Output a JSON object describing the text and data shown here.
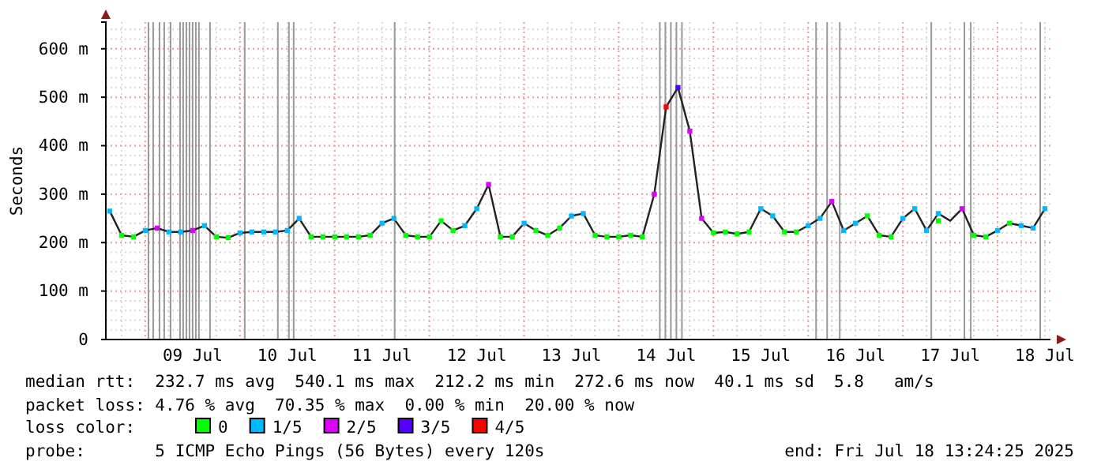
{
  "chart_data": {
    "type": "line",
    "ylabel": "Seconds",
    "legend_title": "loss color:",
    "legend": "bottom",
    "grid": true,
    "xlim": [
      "2025-07-08T14:00",
      "2025-07-18T13:24"
    ],
    "xticks": [
      {
        "value": "2025-07-09T12:00",
        "label": "09 Jul"
      },
      {
        "value": "2025-07-10T12:00",
        "label": "10 Jul"
      },
      {
        "value": "2025-07-11T12:00",
        "label": "11 Jul"
      },
      {
        "value": "2025-07-12T12:00",
        "label": "12 Jul"
      },
      {
        "value": "2025-07-13T12:00",
        "label": "13 Jul"
      },
      {
        "value": "2025-07-14T12:00",
        "label": "14 Jul"
      },
      {
        "value": "2025-07-15T12:00",
        "label": "15 Jul"
      },
      {
        "value": "2025-07-16T12:00",
        "label": "16 Jul"
      },
      {
        "value": "2025-07-17T12:00",
        "label": "17 Jul"
      },
      {
        "value": "2025-07-18T12:00",
        "label": "18 Jul"
      }
    ],
    "ylim": [
      0,
      655
    ],
    "yticks": [
      0,
      {
        "value": 100,
        "label": "100 m"
      },
      {
        "value": 200,
        "label": "200 m"
      },
      {
        "value": 300,
        "label": "300 m"
      },
      {
        "value": 400,
        "label": "400 m"
      },
      {
        "value": 500,
        "label": "500 m"
      },
      {
        "value": 600,
        "label": "600 m"
      }
    ],
    "x": [
      "2025-07-08T15:00",
      "2025-07-08T18:00",
      "2025-07-08T21:00",
      "2025-07-09T00:00",
      "2025-07-09T03:00",
      "2025-07-09T06:00",
      "2025-07-09T09:00",
      "2025-07-09T12:00",
      "2025-07-09T15:00",
      "2025-07-09T18:00",
      "2025-07-09T21:00",
      "2025-07-10T00:00",
      "2025-07-10T03:00",
      "2025-07-10T06:00",
      "2025-07-10T09:00",
      "2025-07-10T12:00",
      "2025-07-10T15:00",
      "2025-07-10T18:00",
      "2025-07-10T21:00",
      "2025-07-11T00:00",
      "2025-07-11T03:00",
      "2025-07-11T06:00",
      "2025-07-11T09:00",
      "2025-07-11T12:00",
      "2025-07-11T15:00",
      "2025-07-11T18:00",
      "2025-07-11T21:00",
      "2025-07-12T00:00",
      "2025-07-12T03:00",
      "2025-07-12T06:00",
      "2025-07-12T09:00",
      "2025-07-12T12:00",
      "2025-07-12T15:00",
      "2025-07-12T18:00",
      "2025-07-12T21:00",
      "2025-07-13T00:00",
      "2025-07-13T03:00",
      "2025-07-13T06:00",
      "2025-07-13T09:00",
      "2025-07-13T12:00",
      "2025-07-13T15:00",
      "2025-07-13T18:00",
      "2025-07-13T21:00",
      "2025-07-14T00:00",
      "2025-07-14T03:00",
      "2025-07-14T06:00",
      "2025-07-14T09:00",
      "2025-07-14T12:00",
      "2025-07-14T15:00",
      "2025-07-14T18:00",
      "2025-07-14T21:00",
      "2025-07-15T00:00",
      "2025-07-15T03:00",
      "2025-07-15T06:00",
      "2025-07-15T09:00",
      "2025-07-15T12:00",
      "2025-07-15T15:00",
      "2025-07-15T18:00",
      "2025-07-15T21:00",
      "2025-07-16T00:00",
      "2025-07-16T03:00",
      "2025-07-16T06:00",
      "2025-07-16T09:00",
      "2025-07-16T12:00",
      "2025-07-16T15:00",
      "2025-07-16T18:00",
      "2025-07-16T21:00",
      "2025-07-17T00:00",
      "2025-07-17T03:00",
      "2025-07-17T06:00",
      "2025-07-17T09:00",
      "2025-07-17T12:00",
      "2025-07-17T15:00",
      "2025-07-17T18:00",
      "2025-07-17T21:00",
      "2025-07-18T00:00",
      "2025-07-18T03:00",
      "2025-07-18T06:00",
      "2025-07-18T09:00",
      "2025-07-18T12:00"
    ],
    "series": [
      {
        "color": "#222222",
        "values": [
          265,
          215,
          212,
          225,
          230,
          222,
          222,
          225,
          235,
          212,
          210,
          220,
          222,
          222,
          222,
          225,
          250,
          212,
          212,
          212,
          212,
          212,
          215,
          240,
          250,
          215,
          212,
          212,
          245,
          225,
          235,
          270,
          320,
          212,
          212,
          240,
          225,
          215,
          230,
          255,
          260,
          215,
          212,
          212,
          215,
          212,
          300,
          480,
          520,
          430,
          250,
          220,
          222,
          218,
          222,
          270,
          255,
          222,
          222,
          235,
          250,
          285,
          225,
          240,
          255,
          215,
          212,
          250,
          270,
          225,
          260,
          245,
          270,
          215,
          212,
          225,
          240,
          235,
          230,
          270
        ]
      },
      {
        "type": "scatter",
        "name": "0",
        "color": "#00ff00",
        "marker": "square",
        "x": [
          "2025-07-08T18:00",
          "2025-07-08T21:00",
          "2025-07-09T18:00",
          "2025-07-09T21:00",
          "2025-07-10T18:00",
          "2025-07-10T21:00",
          "2025-07-11T00:00",
          "2025-07-11T03:00",
          "2025-07-11T06:00",
          "2025-07-11T09:00",
          "2025-07-11T18:00",
          "2025-07-11T21:00",
          "2025-07-12T00:00",
          "2025-07-12T03:00",
          "2025-07-12T06:00",
          "2025-07-12T18:00",
          "2025-07-12T21:00",
          "2025-07-13T03:00",
          "2025-07-13T06:00",
          "2025-07-13T09:00",
          "2025-07-13T18:00",
          "2025-07-13T21:00",
          "2025-07-14T00:00",
          "2025-07-14T03:00",
          "2025-07-14T06:00",
          "2025-07-15T00:00",
          "2025-07-15T03:00",
          "2025-07-15T06:00",
          "2025-07-15T09:00",
          "2025-07-15T18:00",
          "2025-07-15T21:00",
          "2025-07-16T15:00",
          "2025-07-16T18:00",
          "2025-07-16T21:00",
          "2025-07-17T09:00",
          "2025-07-17T18:00",
          "2025-07-17T21:00",
          "2025-07-18T03:00"
        ],
        "values": [
          215,
          212,
          212,
          210,
          212,
          212,
          212,
          212,
          212,
          215,
          215,
          212,
          212,
          245,
          225,
          212,
          212,
          225,
          215,
          230,
          215,
          212,
          212,
          215,
          212,
          220,
          222,
          218,
          222,
          222,
          222,
          255,
          215,
          212,
          245,
          215,
          212,
          240
        ]
      },
      {
        "type": "scatter",
        "name": "1/5",
        "color": "#00b8ff",
        "marker": "square",
        "x": [
          "2025-07-08T15:00",
          "2025-07-09T00:00",
          "2025-07-09T06:00",
          "2025-07-09T09:00",
          "2025-07-09T15:00",
          "2025-07-10T00:00",
          "2025-07-10T03:00",
          "2025-07-10T06:00",
          "2025-07-10T09:00",
          "2025-07-10T12:00",
          "2025-07-10T15:00",
          "2025-07-11T12:00",
          "2025-07-11T15:00",
          "2025-07-12T09:00",
          "2025-07-12T12:00",
          "2025-07-13T00:00",
          "2025-07-13T12:00",
          "2025-07-13T15:00",
          "2025-07-15T12:00",
          "2025-07-15T15:00",
          "2025-07-16T00:00",
          "2025-07-16T03:00",
          "2025-07-16T09:00",
          "2025-07-16T12:00",
          "2025-07-17T00:00",
          "2025-07-17T03:00",
          "2025-07-17T06:00",
          "2025-07-17T09:00",
          "2025-07-18T00:00",
          "2025-07-18T06:00",
          "2025-07-18T09:00",
          "2025-07-18T12:00"
        ],
        "values": [
          265,
          225,
          222,
          222,
          235,
          220,
          222,
          222,
          222,
          225,
          250,
          240,
          250,
          235,
          270,
          240,
          255,
          260,
          270,
          255,
          235,
          250,
          225,
          240,
          250,
          270,
          225,
          260,
          225,
          235,
          230,
          270
        ]
      },
      {
        "type": "scatter",
        "name": "2/5",
        "color": "#dd00ff",
        "marker": "square",
        "x": [
          "2025-07-09T03:00",
          "2025-07-09T12:00",
          "2025-07-12T15:00",
          "2025-07-14T09:00",
          "2025-07-14T18:00",
          "2025-07-14T21:00",
          "2025-07-16T06:00",
          "2025-07-17T15:00"
        ],
        "values": [
          230,
          225,
          320,
          300,
          430,
          250,
          285,
          270
        ]
      },
      {
        "type": "scatter",
        "name": "3/5",
        "color": "#5500ff",
        "marker": "square",
        "x": [
          "2025-07-14T15:00"
        ],
        "values": [
          520
        ]
      },
      {
        "type": "scatter",
        "name": "4/5",
        "color": "#ff0000",
        "marker": "square",
        "x": [
          "2025-07-14T12:00"
        ],
        "values": [
          480
        ]
      }
    ],
    "ref_lines": [
      {
        "axis": "x",
        "value": "2025-07-09T00:48",
        "color": "#999999"
      },
      {
        "axis": "x",
        "value": "2025-07-09T02:00",
        "color": "#999999"
      },
      {
        "axis": "x",
        "value": "2025-07-09T03:36",
        "color": "#999999"
      },
      {
        "axis": "x",
        "value": "2025-07-09T04:48",
        "color": "#999999"
      },
      {
        "axis": "x",
        "value": "2025-07-09T06:24",
        "color": "#999999"
      },
      {
        "axis": "x",
        "value": "2025-07-09T08:48",
        "color": "#999999"
      },
      {
        "axis": "x",
        "value": "2025-07-09T09:36",
        "color": "#999999"
      },
      {
        "axis": "x",
        "value": "2025-07-09T10:24",
        "color": "#999999"
      },
      {
        "axis": "x",
        "value": "2025-07-09T11:12",
        "color": "#999999"
      },
      {
        "axis": "x",
        "value": "2025-07-09T12:00",
        "color": "#999999"
      },
      {
        "axis": "x",
        "value": "2025-07-09T12:48",
        "color": "#999999"
      },
      {
        "axis": "x",
        "value": "2025-07-09T13:36",
        "color": "#999999"
      },
      {
        "axis": "x",
        "value": "2025-07-09T16:24",
        "color": "#999999"
      },
      {
        "axis": "x",
        "value": "2025-07-10T01:12",
        "color": "#999999"
      },
      {
        "axis": "x",
        "value": "2025-07-10T09:36",
        "color": "#999999"
      },
      {
        "axis": "x",
        "value": "2025-07-10T12:24",
        "color": "#999999"
      },
      {
        "axis": "x",
        "value": "2025-07-10T13:36",
        "color": "#999999"
      },
      {
        "axis": "x",
        "value": "2025-07-11T15:12",
        "color": "#999999"
      },
      {
        "axis": "x",
        "value": "2025-07-14T10:24",
        "color": "#999999"
      },
      {
        "axis": "x",
        "value": "2025-07-14T11:48",
        "color": "#999999"
      },
      {
        "axis": "x",
        "value": "2025-07-14T13:12",
        "color": "#999999"
      },
      {
        "axis": "x",
        "value": "2025-07-14T14:36",
        "color": "#999999"
      },
      {
        "axis": "x",
        "value": "2025-07-14T16:00",
        "color": "#999999"
      },
      {
        "axis": "x",
        "value": "2025-07-16T02:00",
        "color": "#999999"
      },
      {
        "axis": "x",
        "value": "2025-07-16T04:48",
        "color": "#999999"
      },
      {
        "axis": "x",
        "value": "2025-07-16T08:00",
        "color": "#999999"
      },
      {
        "axis": "x",
        "value": "2025-07-17T07:12",
        "color": "#999999"
      },
      {
        "axis": "x",
        "value": "2025-07-17T15:36",
        "color": "#999999"
      },
      {
        "axis": "x",
        "value": "2025-07-17T17:12",
        "color": "#999999"
      },
      {
        "axis": "x",
        "value": "2025-07-18T10:48",
        "color": "#999999"
      }
    ],
    "annotations": [
      "median rtt:  232.7 ms avg  540.1 ms max  212.2 ms min  272.6 ms now  40.1 ms sd  5.8   am/s",
      "packet loss: 4.76 % avg  70.35 % max  0.00 % min  20.00 % now",
      "probe:       5 ICMP Echo Pings (56 Bytes) every 120s",
      "end: Fri Jul 18 13:24:25 2025"
    ]
  }
}
